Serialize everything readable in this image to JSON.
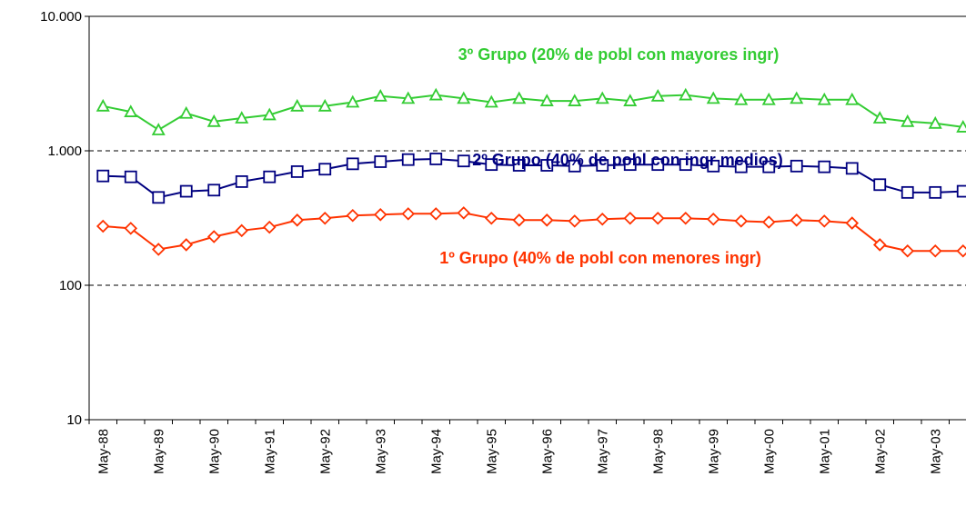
{
  "chart_data": {
    "type": "line",
    "log_scale": true,
    "grid": true,
    "categories": [
      "May-88",
      null,
      "May-89",
      null,
      "May-90",
      null,
      "May-91",
      null,
      "May-92",
      null,
      "May-93",
      null,
      "May-94",
      null,
      "May-95",
      null,
      "May-96",
      null,
      "May-97",
      null,
      "May-98",
      null,
      "May-99",
      null,
      "May-00",
      null,
      "May-01",
      null,
      "May-02",
      null,
      "May-03",
      null
    ],
    "ylim": [
      10,
      10000
    ],
    "yticks": [
      10,
      100,
      {
        "value": 1000,
        "label": "1.000"
      },
      {
        "value": 10000,
        "label": "10.000"
      }
    ],
    "series": [
      {
        "name": "3º Grupo (20% de pobl con mayores ingr)",
        "color": "#33cc33",
        "marker": "triangle",
        "values": [
          2150,
          1950,
          1430,
          1900,
          1650,
          1750,
          1850,
          2150,
          2150,
          2300,
          2550,
          2450,
          2600,
          2450,
          2300,
          2450,
          2350,
          2350,
          2450,
          2350,
          2550,
          2600,
          2450,
          2400,
          2400,
          2450,
          2400,
          2400,
          1750,
          1650,
          1600,
          1500
        ]
      },
      {
        "name": "2º Grupo (40% de pobl con ingr medios)",
        "color": "#000080",
        "marker": "square",
        "values": [
          650,
          640,
          450,
          500,
          510,
          590,
          640,
          700,
          730,
          800,
          830,
          860,
          870,
          840,
          790,
          780,
          780,
          770,
          780,
          790,
          790,
          790,
          770,
          760,
          760,
          770,
          760,
          740,
          560,
          490,
          490,
          500
        ]
      },
      {
        "name": "1º Grupo (40% de pobl con menores ingr)",
        "color": "#ff3300",
        "marker": "diamond",
        "values": [
          275,
          265,
          185,
          200,
          230,
          255,
          270,
          305,
          315,
          330,
          335,
          340,
          340,
          345,
          315,
          305,
          305,
          300,
          310,
          315,
          315,
          315,
          310,
          300,
          295,
          305,
          300,
          290,
          200,
          180,
          180,
          180
        ]
      }
    ]
  }
}
